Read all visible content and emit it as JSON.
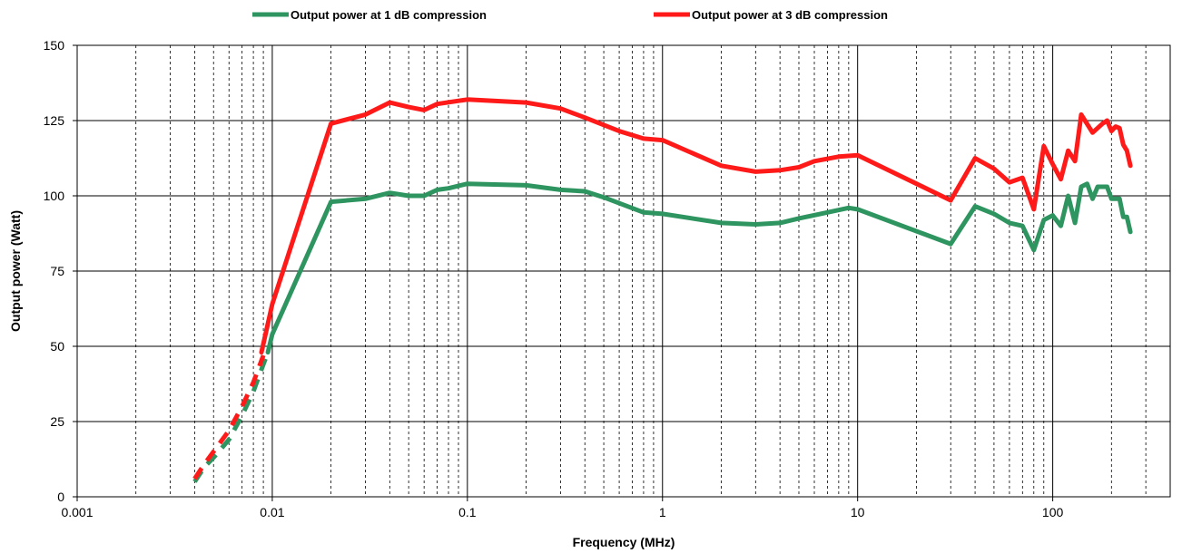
{
  "chart_data": {
    "type": "line",
    "xlabel": "Frequency (MHz)",
    "ylabel": "Output power (Watt)",
    "x_scale": "log",
    "xlim": [
      0.001,
      400
    ],
    "ylim": [
      0,
      150
    ],
    "x_ticks": [
      0.001,
      0.01,
      0.1,
      1,
      10,
      100
    ],
    "x_tick_labels": [
      "0.001",
      "0.01",
      "0.1",
      "1",
      "10",
      "100"
    ],
    "y_ticks": [
      0,
      25,
      50,
      75,
      100,
      125,
      150
    ],
    "y_tick_labels": [
      "0",
      "25",
      "50",
      "75",
      "100",
      "125",
      "150"
    ],
    "grid": {
      "major_x": true,
      "minor_x": true,
      "major_y": true
    },
    "legend_position": "top-center",
    "series": [
      {
        "name": "Output power at 1 dB compression",
        "color": "#2e9460",
        "dashed_values": [
          [
            0.004,
            5
          ],
          [
            0.0045,
            10
          ],
          [
            0.005,
            13
          ],
          [
            0.006,
            19
          ],
          [
            0.007,
            27
          ],
          [
            0.008,
            35
          ],
          [
            0.009,
            44
          ],
          [
            0.0095,
            48
          ]
        ],
        "values": [
          [
            0.0095,
            48
          ],
          [
            0.01,
            54
          ],
          [
            0.02,
            98
          ],
          [
            0.03,
            99
          ],
          [
            0.04,
            101
          ],
          [
            0.05,
            100
          ],
          [
            0.06,
            100
          ],
          [
            0.07,
            102
          ],
          [
            0.08,
            102.5
          ],
          [
            0.1,
            104
          ],
          [
            0.2,
            103.5
          ],
          [
            0.3,
            102
          ],
          [
            0.4,
            101.5
          ],
          [
            0.5,
            99.5
          ],
          [
            0.8,
            94.5
          ],
          [
            1,
            94
          ],
          [
            2,
            91
          ],
          [
            3,
            90.5
          ],
          [
            4,
            91
          ],
          [
            5,
            92.5
          ],
          [
            7,
            94.5
          ],
          [
            9,
            96
          ],
          [
            10,
            95.5
          ],
          [
            30,
            84
          ],
          [
            40,
            96.5
          ],
          [
            50,
            94
          ],
          [
            60,
            91
          ],
          [
            70,
            90
          ],
          [
            80,
            82
          ],
          [
            90,
            92
          ],
          [
            100,
            93.5
          ],
          [
            110,
            90
          ],
          [
            120,
            100
          ],
          [
            130,
            91
          ],
          [
            140,
            103
          ],
          [
            150,
            104
          ],
          [
            160,
            99
          ],
          [
            170,
            103
          ],
          [
            190,
            103
          ],
          [
            200,
            99
          ],
          [
            220,
            99
          ],
          [
            230,
            93
          ],
          [
            240,
            93
          ],
          [
            250,
            88
          ]
        ]
      },
      {
        "name": "Output power at 3 dB compression",
        "color": "#ff1a1a",
        "dashed_values": [
          [
            0.004,
            6
          ],
          [
            0.0045,
            11
          ],
          [
            0.005,
            15
          ],
          [
            0.006,
            22
          ],
          [
            0.007,
            30
          ],
          [
            0.008,
            38
          ],
          [
            0.009,
            47
          ]
        ],
        "values": [
          [
            0.0088,
            48
          ],
          [
            0.01,
            64
          ],
          [
            0.02,
            124
          ],
          [
            0.03,
            127
          ],
          [
            0.04,
            131
          ],
          [
            0.05,
            129.5
          ],
          [
            0.06,
            128.5
          ],
          [
            0.07,
            130.5
          ],
          [
            0.1,
            132
          ],
          [
            0.2,
            131
          ],
          [
            0.3,
            129
          ],
          [
            0.4,
            126
          ],
          [
            0.6,
            121.5
          ],
          [
            0.8,
            119
          ],
          [
            1,
            118.5
          ],
          [
            2,
            110
          ],
          [
            3,
            108
          ],
          [
            4,
            108.5
          ],
          [
            5,
            109.5
          ],
          [
            6,
            111.5
          ],
          [
            8,
            113
          ],
          [
            10,
            113.5
          ],
          [
            30,
            98.5
          ],
          [
            40,
            112.5
          ],
          [
            50,
            109
          ],
          [
            60,
            104.5
          ],
          [
            70,
            106
          ],
          [
            80,
            95.5
          ],
          [
            90,
            116.5
          ],
          [
            100,
            110.5
          ],
          [
            110,
            105.5
          ],
          [
            120,
            115
          ],
          [
            130,
            111.5
          ],
          [
            140,
            127
          ],
          [
            160,
            121
          ],
          [
            180,
            124
          ],
          [
            190,
            125
          ],
          [
            200,
            121.5
          ],
          [
            210,
            123
          ],
          [
            220,
            122.5
          ],
          [
            230,
            117
          ],
          [
            240,
            115
          ],
          [
            250,
            110
          ]
        ]
      }
    ]
  }
}
